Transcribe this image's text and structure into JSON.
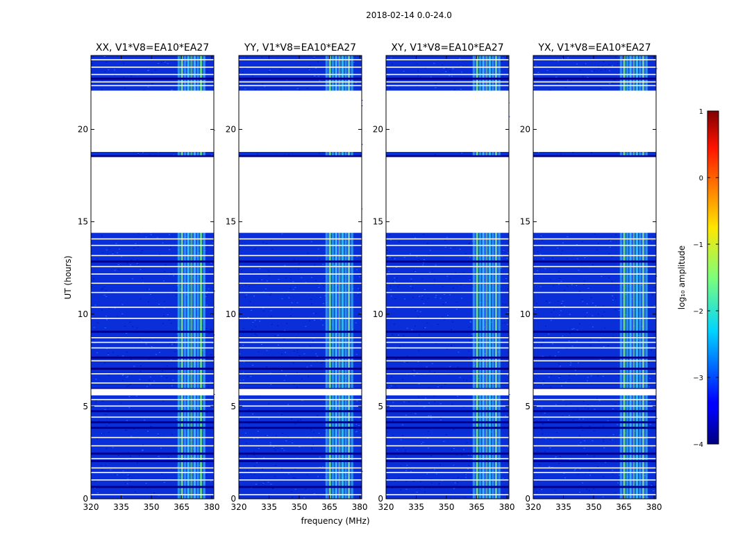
{
  "figure": {
    "suptitle": "2018-02-14 0.0-24.0",
    "ylabel": "UT (hours)",
    "xlabel": "frequency (MHz)"
  },
  "chart_data": {
    "type": "heatmap",
    "xlim": [
      320,
      381
    ],
    "ylim": [
      0,
      24
    ],
    "x_ticks": [
      320,
      335,
      350,
      365,
      380
    ],
    "x_tick_labels": [
      "320",
      "335",
      "350",
      "365",
      "380"
    ],
    "y_ticks": [
      0,
      5,
      10,
      15,
      20
    ],
    "y_tick_labels": [
      "0",
      "5",
      "10",
      "15",
      "20"
    ],
    "panels": [
      {
        "title": "XX, V1*V8=EA10*EA27",
        "pol": "XX"
      },
      {
        "title": "YY, V1*V8=EA10*EA27",
        "pol": "YY"
      },
      {
        "title": "XY, V1*V8=EA10*EA27",
        "pol": "XY"
      },
      {
        "title": "YX, V1*V8=EA10*EA27",
        "pol": "YX"
      }
    ],
    "data_gaps_hours": [
      [
        5.6,
        5.95
      ],
      [
        14.4,
        18.5
      ],
      [
        18.78,
        22.1
      ]
    ],
    "rfi_band_mhz": [
      363,
      381
    ],
    "colorbar": {
      "label": "log₁₀ amplitude",
      "range": [
        -4,
        1
      ],
      "ticks": [
        1,
        0,
        -1,
        -2,
        -3,
        -4
      ],
      "tick_labels": [
        "1",
        "0",
        "−1",
        "−2",
        "−3",
        "−4"
      ],
      "colormap": "jet"
    }
  },
  "colors": {
    "background_noise": "#0a2fd8",
    "deep_blue": "#00008f",
    "rfi_cyan": "#40e0ff",
    "rfi_green": "#7fff7f",
    "gap_white": "#ffffff"
  }
}
